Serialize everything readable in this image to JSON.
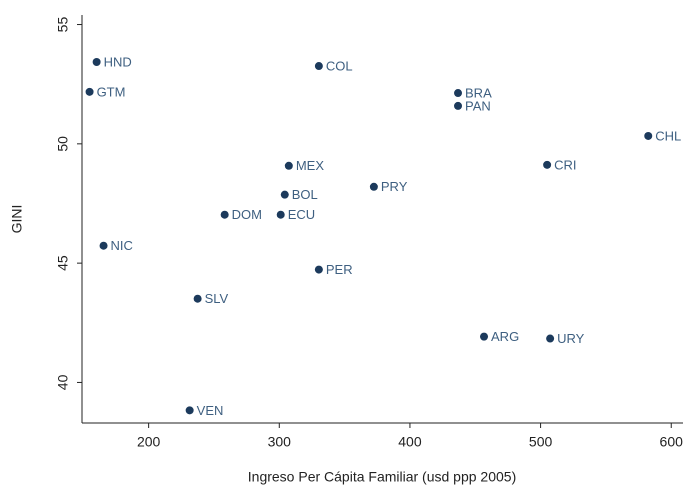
{
  "chart_data": {
    "type": "scatter",
    "x_label": "Ingreso Per Cápita Familiar (usd ppp 2005)",
    "y_label": "GINI",
    "color": "#1c3a5c",
    "label_color": "#3e5f80",
    "labels": [
      "HND",
      "GTM",
      "COL",
      "BRA",
      "PAN",
      "CHL",
      "CRI",
      "MEX",
      "PRY",
      "BOL",
      "DOM",
      "ECU",
      "NIC",
      "PER",
      "SLV",
      "ARG",
      "URY",
      "VEN"
    ],
    "x": [
      160.2,
      154.8,
      330.3,
      436.8,
      436.8,
      582.4,
      505.0,
      307.3,
      372.4,
      304.2,
      258.2,
      301.1,
      165.5,
      330.3,
      237.5,
      456.7,
      507.3,
      231.4
    ],
    "y": [
      53.43,
      52.18,
      53.26,
      52.13,
      51.59,
      50.33,
      49.12,
      49.08,
      48.2,
      47.87,
      47.03,
      47.03,
      45.73,
      44.73,
      43.51,
      41.92,
      41.84,
      38.83
    ],
    "xlim": [
      149,
      609
    ],
    "ylim": [
      38.3,
      55.4
    ],
    "xticks": [
      200,
      300,
      400,
      500,
      600
    ],
    "yticks": [
      40,
      45,
      50,
      55
    ]
  }
}
